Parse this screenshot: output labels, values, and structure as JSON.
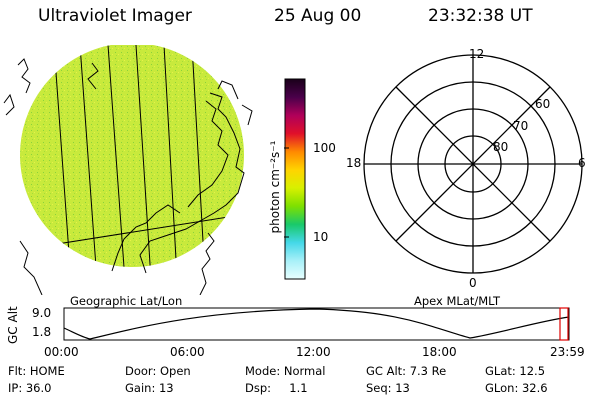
{
  "header": {
    "instrument": "Ultraviolet Imager",
    "date": "25 Aug 00",
    "time": "23:32:38 UT"
  },
  "colorbar": {
    "units": "photon cm⁻²s⁻¹",
    "tick_labels": [
      "100",
      "10"
    ],
    "stops": [
      "#1a001a",
      "#4a004a",
      "#b0005a",
      "#e0102a",
      "#ff8a00",
      "#ffd400",
      "#d8f000",
      "#7ee000",
      "#19c96a",
      "#44d8e8",
      "#a8f0f8",
      "#e8ffff"
    ]
  },
  "geo_map": {
    "title": "Geographic Lat/Lon",
    "fill_color": "#c8ea3c"
  },
  "polar_plot": {
    "title": "Apex MLat/MLT",
    "mlt_labels": {
      "top": "12",
      "left": "18",
      "right": "6",
      "bottom": "0"
    },
    "lat_labels": [
      "60",
      "70",
      "80"
    ]
  },
  "altitude_plot": {
    "y_axis_label": "GC Alt",
    "y_ticks": [
      "9.0",
      "1.8"
    ],
    "x_ticks": [
      "00:00",
      "06:00",
      "12:00",
      "18:00",
      "23:59"
    ],
    "marker_color": "#e00000"
  },
  "status": {
    "rows": [
      [
        "Flt: HOME",
        "Door: Open",
        "Mode: Normal",
        "GC Alt: 7.3 Re",
        "GLat: 12.5"
      ],
      [
        "IP: 36.0",
        "Gain: 13",
        "Dsp:     1.1",
        "Seq: 13",
        "GLon: 32.6"
      ]
    ]
  }
}
